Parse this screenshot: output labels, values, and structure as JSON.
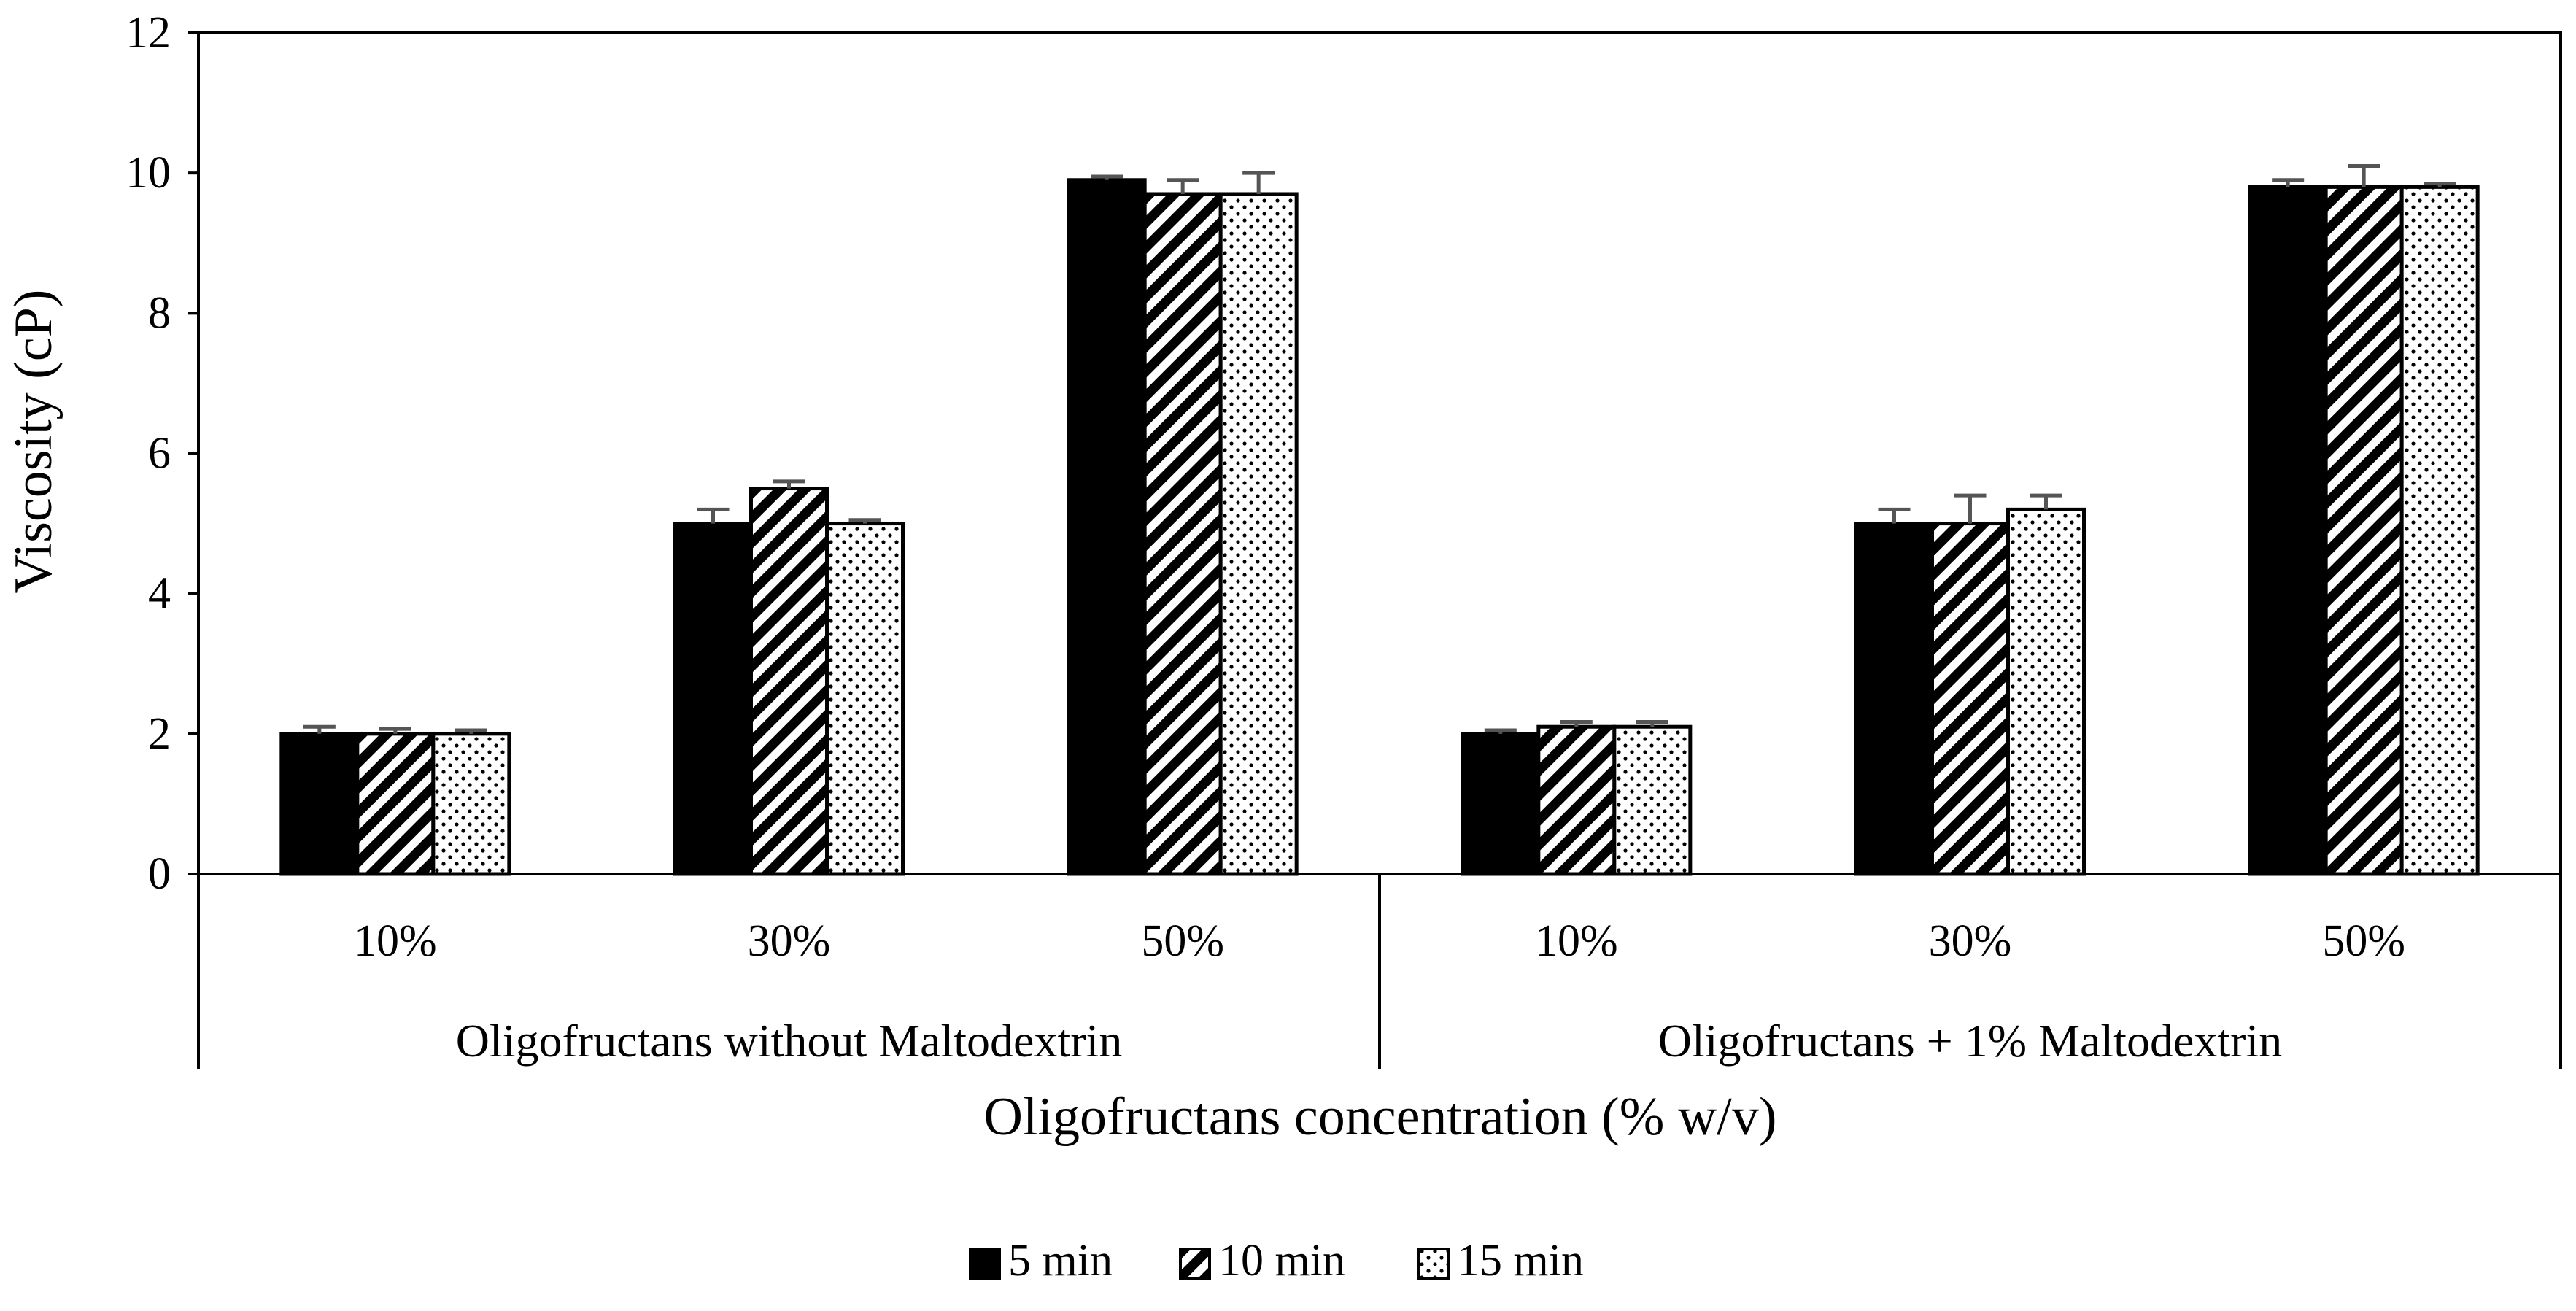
{
  "chart_data": {
    "type": "bar",
    "title": "",
    "xlabel": "Oligofructans concentration (% w/v)",
    "ylabel": "Viscosity (cP)",
    "ylim": [
      0,
      12
    ],
    "yticks": [
      "0",
      "2",
      "4",
      "6",
      "8",
      "10",
      "12"
    ],
    "groups": [
      {
        "label": "Oligofructans without Maltodextrin",
        "categories": [
          "10%",
          "30%",
          "50%"
        ]
      },
      {
        "label": "Oligofructans + 1% Maltodextrin",
        "categories": [
          "10%",
          "30%",
          "50%"
        ]
      }
    ],
    "categories": [
      "10%",
      "30%",
      "50%",
      "10%",
      "30%",
      "50%"
    ],
    "series": [
      {
        "name": "5 min",
        "pattern": "solid",
        "values": [
          2.0,
          5.0,
          9.9,
          2.0,
          5.0,
          9.8
        ],
        "errors": [
          0.1,
          0.2,
          0.05,
          0.05,
          0.2,
          0.1
        ]
      },
      {
        "name": "10 min",
        "pattern": "diagonal",
        "values": [
          2.0,
          5.5,
          9.7,
          2.1,
          5.0,
          9.8
        ],
        "errors": [
          0.07,
          0.1,
          0.2,
          0.07,
          0.4,
          0.3
        ]
      },
      {
        "name": "15 min",
        "pattern": "dotted",
        "values": [
          2.0,
          5.0,
          9.7,
          2.1,
          5.2,
          9.8
        ],
        "errors": [
          0.05,
          0.05,
          0.3,
          0.07,
          0.2,
          0.05
        ]
      }
    ],
    "legend_position": "bottom",
    "colors": {
      "bar_fill": "#000000",
      "pattern_bg": "#ffffff",
      "error_bar": "#555555",
      "axis": "#000000"
    }
  }
}
